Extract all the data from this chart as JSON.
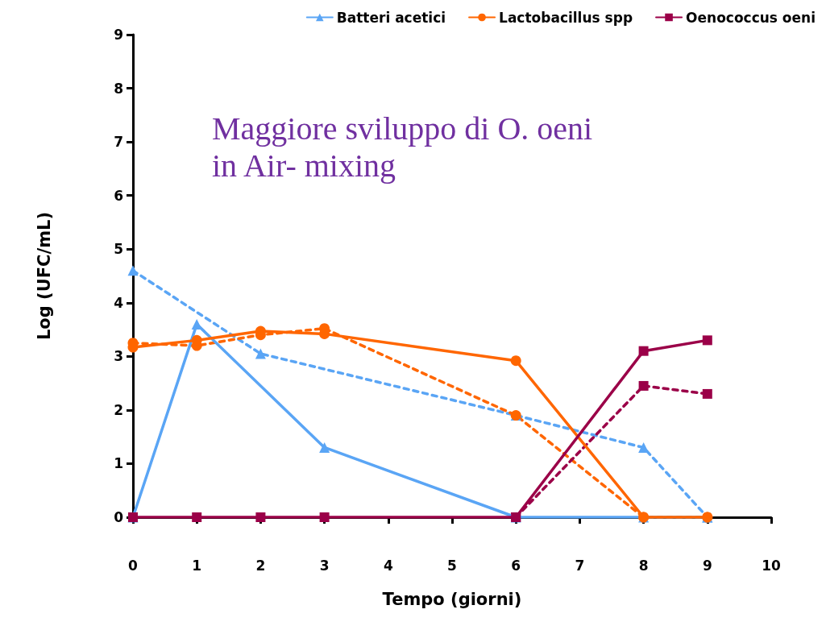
{
  "chart_data": {
    "type": "line",
    "xlabel": "Tempo (giorni)",
    "ylabel": "Log (UFC/mL)",
    "xlim": [
      0,
      10
    ],
    "xticks": [
      0,
      1,
      2,
      3,
      4,
      5,
      6,
      7,
      8,
      9,
      10
    ],
    "ylim": [
      0,
      9
    ],
    "yticks": [
      0,
      1,
      2,
      3,
      4,
      5,
      6,
      7,
      8,
      9
    ],
    "grid": false,
    "legend": "top right",
    "annotations": [
      "Maggiore sviluppo di O. oeni\nin Air- mixing"
    ],
    "series": [
      {
        "name": "Batteri acetici",
        "color": "#5aa5f5",
        "marker": "triangle",
        "line_style": "solid",
        "x": [
          0,
          1,
          3,
          6,
          8,
          9
        ],
        "values": [
          0,
          3.6,
          1.3,
          0,
          0,
          0
        ]
      },
      {
        "name": "Lactobacillus spp",
        "color": "#ff6600",
        "marker": "circle",
        "line_style": "solid",
        "x": [
          0,
          1,
          2,
          3,
          6,
          8,
          9
        ],
        "values": [
          3.17,
          3.3,
          3.47,
          3.42,
          2.92,
          0,
          0
        ]
      },
      {
        "name": "Oenococcus oeni",
        "color": "#9b0048",
        "marker": "square",
        "line_style": "solid",
        "x": [
          0,
          1,
          2,
          3,
          6,
          8,
          9
        ],
        "values": [
          0,
          0,
          0,
          0,
          0,
          3.1,
          3.3
        ]
      },
      {
        "color": "#5aa5f5",
        "marker": "triangle",
        "line_style": "dashed",
        "x": [
          0,
          2,
          6,
          8,
          9
        ],
        "values": [
          4.6,
          3.05,
          1.9,
          1.3,
          0
        ]
      },
      {
        "color": "#ff6600",
        "marker": "circle",
        "line_style": "dashed",
        "x": [
          0,
          1,
          2,
          3,
          6,
          8,
          9
        ],
        "values": [
          3.25,
          3.2,
          3.4,
          3.52,
          1.9,
          0,
          0
        ]
      },
      {
        "color": "#9b0048",
        "marker": "square",
        "line_style": "dashed",
        "x": [
          6,
          8,
          9
        ],
        "values": [
          0,
          2.45,
          2.3
        ]
      }
    ]
  }
}
